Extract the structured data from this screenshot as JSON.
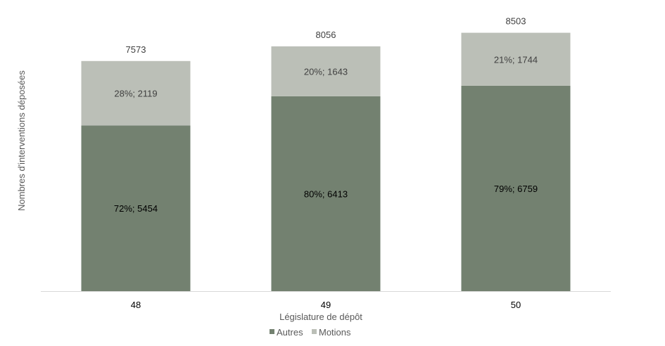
{
  "chart_data": {
    "type": "bar",
    "stacked": true,
    "categories": [
      "48",
      "49",
      "50"
    ],
    "series": [
      {
        "name": "Autres",
        "values": [
          5454,
          6413,
          6759
        ],
        "labels": [
          "72%; 5454",
          "80%; 6413",
          "79%; 6759"
        ],
        "color": "#738170"
      },
      {
        "name": "Motions",
        "values": [
          2119,
          1643,
          1744
        ],
        "labels": [
          "28%; 2119",
          "20%; 1643",
          "21%; 1744"
        ],
        "color": "#bbbfb7"
      }
    ],
    "totals": [
      "7573",
      "8056",
      "8503"
    ],
    "xlabel": "Législature de dépôt",
    "ylabel": "Nombres d'interventions déposées",
    "ylim": [
      0,
      9500
    ],
    "grid": false,
    "legend": "bottom"
  }
}
